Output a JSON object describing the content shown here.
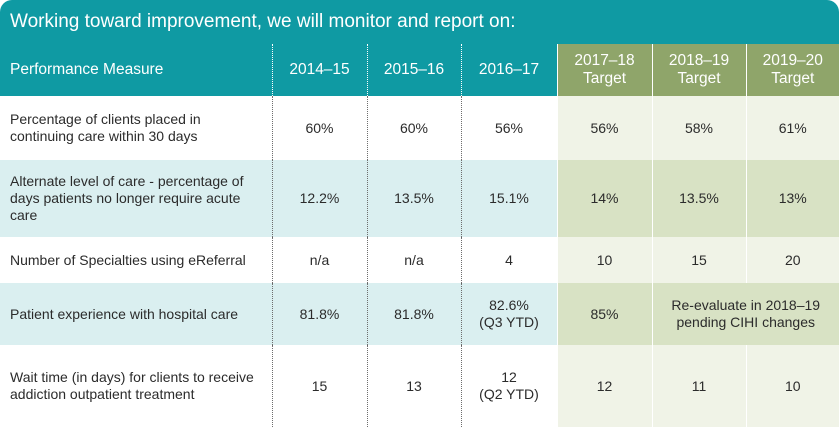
{
  "banner": {
    "title": "Working toward improvement, we will monitor and report on:"
  },
  "header": {
    "measure": "Performance Measure",
    "y1": "2014–15",
    "y2": "2015–16",
    "y3": "2016–17",
    "t1_year": "2017–18",
    "t1_label": "Target",
    "t2_year": "2018–19",
    "t2_label": "Target",
    "t3_year": "2019–20",
    "t3_label": "Target"
  },
  "rows": [
    {
      "measure": "Percentage of clients placed in continuing care within 30 days",
      "y1": "60%",
      "y2": "60%",
      "y3": "56%",
      "t1": "56%",
      "t2": "58%",
      "t3": "61%"
    },
    {
      "measure": "Alternate level of care - percentage of days patients no longer require acute care",
      "y1": "12.2%",
      "y2": "13.5%",
      "y3": "15.1%",
      "t1": "14%",
      "t2": "13.5%",
      "t3": "13%"
    },
    {
      "measure": "Number of Specialties using eReferral",
      "y1": "n/a",
      "y2": "n/a",
      "y3": "4",
      "t1": "10",
      "t2": "15",
      "t3": "20"
    },
    {
      "measure": "Patient experience with hospital care",
      "y1": "81.8%",
      "y2": "81.8%",
      "y3": "82.6%",
      "y3_note": "(Q3 YTD)",
      "t1": "85%",
      "t23": "Re-evaluate in 2018–19 pending CIHI changes"
    },
    {
      "measure": "Wait time (in days) for clients to receive addiction outpatient treatment",
      "y1": "15",
      "y2": "13",
      "y3": "12",
      "y3_note": "(Q2 YTD)",
      "t1": "12",
      "t2": "11",
      "t3": "10"
    }
  ]
}
